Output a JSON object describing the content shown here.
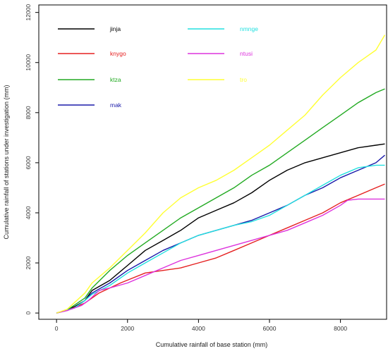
{
  "chart_data": {
    "type": "line",
    "title": "",
    "xlabel": "Cumulative rainfall of base station (mm)",
    "ylabel": "Cumulative rainfall of stations under investigation (mm)",
    "xlim": [
      -500,
      9300
    ],
    "ylim": [
      -250,
      12300
    ],
    "xticks": [
      0,
      2000,
      4000,
      6000,
      8000
    ],
    "yticks": [
      0,
      2000,
      4000,
      6000,
      8000,
      10000,
      12000
    ],
    "legend_position": "top-left",
    "grid": false,
    "series": [
      {
        "name": "jinja",
        "color": "#000000",
        "points": [
          [
            0,
            0
          ],
          [
            200,
            80
          ],
          [
            500,
            250
          ],
          [
            800,
            500
          ],
          [
            1000,
            900
          ],
          [
            1500,
            1300
          ],
          [
            2000,
            1900
          ],
          [
            2500,
            2500
          ],
          [
            3000,
            2900
          ],
          [
            3500,
            3300
          ],
          [
            4000,
            3800
          ],
          [
            4500,
            4100
          ],
          [
            5000,
            4400
          ],
          [
            5500,
            4800
          ],
          [
            6000,
            5300
          ],
          [
            6500,
            5700
          ],
          [
            7000,
            6000
          ],
          [
            7500,
            6200
          ],
          [
            8000,
            6400
          ],
          [
            8500,
            6600
          ],
          [
            9000,
            6700
          ],
          [
            9250,
            6750
          ]
        ]
      },
      {
        "name": "knygo",
        "color": "#e52020",
        "points": [
          [
            0,
            0
          ],
          [
            300,
            100
          ],
          [
            800,
            400
          ],
          [
            1200,
            800
          ],
          [
            1800,
            1200
          ],
          [
            2500,
            1600
          ],
          [
            3000,
            1700
          ],
          [
            3500,
            1800
          ],
          [
            4000,
            2000
          ],
          [
            4500,
            2200
          ],
          [
            5000,
            2500
          ],
          [
            5500,
            2800
          ],
          [
            6000,
            3100
          ],
          [
            6500,
            3400
          ],
          [
            7000,
            3700
          ],
          [
            7500,
            4000
          ],
          [
            8000,
            4400
          ],
          [
            8500,
            4700
          ],
          [
            9000,
            5000
          ],
          [
            9250,
            5150
          ]
        ]
      },
      {
        "name": "ktza",
        "color": "#22aa22",
        "points": [
          [
            0,
            0
          ],
          [
            300,
            120
          ],
          [
            800,
            600
          ],
          [
            1000,
            1000
          ],
          [
            1500,
            1700
          ],
          [
            2000,
            2300
          ],
          [
            2500,
            2800
          ],
          [
            3000,
            3300
          ],
          [
            3500,
            3800
          ],
          [
            4000,
            4200
          ],
          [
            4500,
            4600
          ],
          [
            5000,
            5000
          ],
          [
            5500,
            5500
          ],
          [
            6000,
            5900
          ],
          [
            6500,
            6400
          ],
          [
            7000,
            6900
          ],
          [
            7500,
            7400
          ],
          [
            8000,
            7900
          ],
          [
            8500,
            8400
          ],
          [
            9000,
            8800
          ],
          [
            9250,
            8950
          ]
        ]
      },
      {
        "name": "mak",
        "color": "#1a1aaa",
        "points": [
          [
            0,
            0
          ],
          [
            200,
            70
          ],
          [
            500,
            200
          ],
          [
            800,
            500
          ],
          [
            1000,
            800
          ],
          [
            1500,
            1200
          ],
          [
            2000,
            1700
          ],
          [
            2500,
            2100
          ],
          [
            3000,
            2500
          ],
          [
            3500,
            2800
          ],
          [
            4000,
            3100
          ],
          [
            4500,
            3300
          ],
          [
            5000,
            3500
          ],
          [
            5500,
            3700
          ],
          [
            6000,
            4000
          ],
          [
            6500,
            4300
          ],
          [
            7000,
            4700
          ],
          [
            7500,
            5000
          ],
          [
            8000,
            5400
          ],
          [
            8500,
            5700
          ],
          [
            9000,
            6000
          ],
          [
            9250,
            6300
          ]
        ]
      },
      {
        "name": "nmnge",
        "color": "#22e0e0",
        "points": [
          [
            0,
            0
          ],
          [
            200,
            70
          ],
          [
            500,
            200
          ],
          [
            800,
            500
          ],
          [
            1000,
            750
          ],
          [
            1500,
            1100
          ],
          [
            2000,
            1600
          ],
          [
            2500,
            2000
          ],
          [
            3000,
            2400
          ],
          [
            3500,
            2800
          ],
          [
            4000,
            3100
          ],
          [
            4500,
            3300
          ],
          [
            5000,
            3500
          ],
          [
            5500,
            3650
          ],
          [
            6000,
            3900
          ],
          [
            6500,
            4300
          ],
          [
            7000,
            4700
          ],
          [
            7500,
            5100
          ],
          [
            8000,
            5500
          ],
          [
            8500,
            5800
          ],
          [
            9000,
            5900
          ],
          [
            9250,
            5900
          ]
        ]
      },
      {
        "name": "ntusi",
        "color": "#dd33dd",
        "points": [
          [
            0,
            0
          ],
          [
            300,
            100
          ],
          [
            700,
            300
          ],
          [
            900,
            500
          ],
          [
            1200,
            900
          ],
          [
            1500,
            1000
          ],
          [
            2000,
            1200
          ],
          [
            2500,
            1500
          ],
          [
            3000,
            1800
          ],
          [
            3500,
            2100
          ],
          [
            4000,
            2300
          ],
          [
            4500,
            2500
          ],
          [
            5000,
            2700
          ],
          [
            5500,
            2900
          ],
          [
            6000,
            3100
          ],
          [
            6500,
            3300
          ],
          [
            7000,
            3600
          ],
          [
            7500,
            3900
          ],
          [
            8000,
            4300
          ],
          [
            8200,
            4500
          ],
          [
            8500,
            4550
          ],
          [
            9000,
            4550
          ],
          [
            9250,
            4550
          ]
        ]
      },
      {
        "name": "tro",
        "color": "#ffff33",
        "points": [
          [
            0,
            0
          ],
          [
            300,
            150
          ],
          [
            800,
            800
          ],
          [
            1000,
            1200
          ],
          [
            1500,
            1800
          ],
          [
            2000,
            2500
          ],
          [
            2500,
            3200
          ],
          [
            3000,
            4000
          ],
          [
            3500,
            4600
          ],
          [
            4000,
            5000
          ],
          [
            4500,
            5300
          ],
          [
            5000,
            5700
          ],
          [
            5500,
            6200
          ],
          [
            6000,
            6700
          ],
          [
            6500,
            7300
          ],
          [
            7000,
            7900
          ],
          [
            7500,
            8700
          ],
          [
            8000,
            9400
          ],
          [
            8500,
            10000
          ],
          [
            9000,
            10500
          ],
          [
            9250,
            11100
          ]
        ]
      }
    ]
  }
}
